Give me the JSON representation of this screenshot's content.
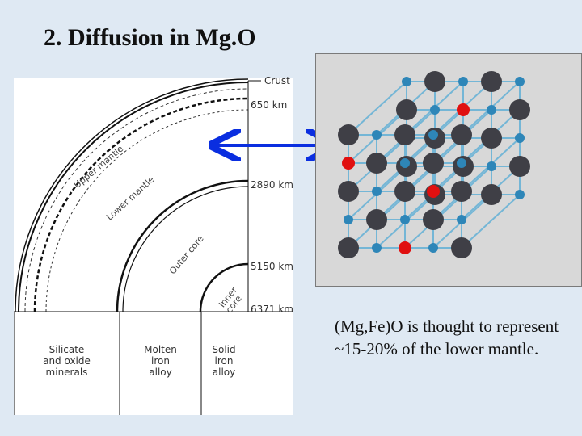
{
  "title": "2. Diffusion in Mg.O",
  "earth_diagram": {
    "depths": [
      "Crust",
      "650 km",
      "2890 km",
      "5150 km",
      "6371 km"
    ],
    "layers": [
      "Upper mantle",
      "Lower mantle",
      "Outer core",
      "Inner core"
    ],
    "compositions": [
      "Silicate\nand oxide\nminerals",
      "Molten\niron\nalloy",
      "Solid\niron\nalloy"
    ]
  },
  "crystal": {
    "mg_color": "#3f3f46",
    "o_color": "#2e86b8",
    "substituted_fe_color": "#e01010",
    "bond_color": "#74b6d6"
  },
  "arrow_color": "#0a2ee0",
  "caption": "(Mg,Fe)O is thought to represent ~15-20% of the lower mantle."
}
